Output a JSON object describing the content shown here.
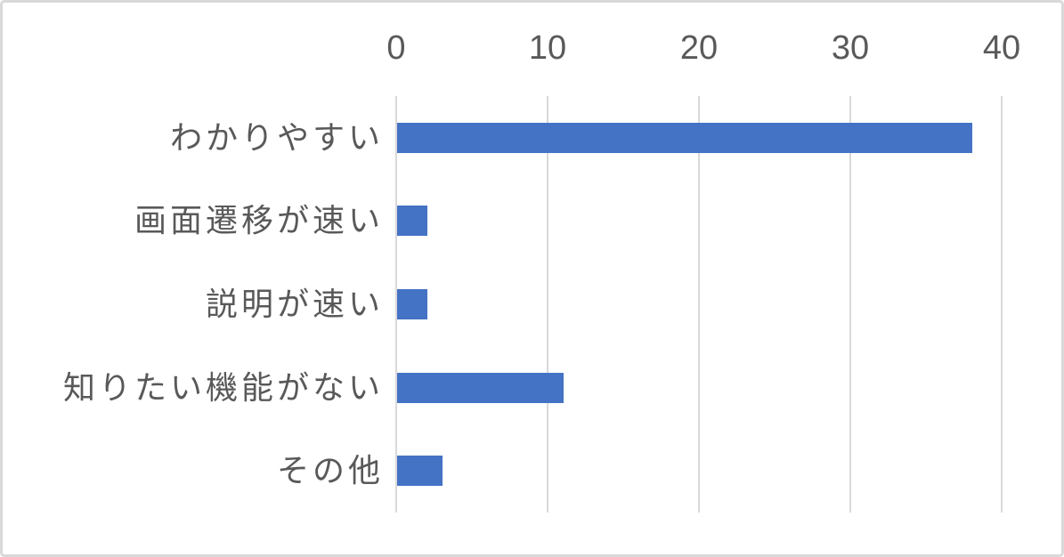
{
  "chart_data": {
    "type": "bar",
    "orientation": "horizontal",
    "title": "",
    "xlabel": "",
    "ylabel": "",
    "categories": [
      "わかりやすい",
      "画面遷移が速い",
      "説明が速い",
      "知りたい機能がない",
      "その他"
    ],
    "values": [
      38,
      2,
      2,
      11,
      3
    ],
    "xlim": [
      0,
      40
    ],
    "x_ticks": [
      0,
      10,
      20,
      30,
      40
    ],
    "x_tick_labels": [
      "0",
      "10",
      "20",
      "30",
      "40"
    ],
    "tick_position": "top",
    "grid": true,
    "legend": false,
    "colors": {
      "bar": "#4472C4",
      "gridline": "#D9D9D9",
      "axis_line": "#D9D9D9",
      "text": "#595959",
      "frame_border": "#D9D9D9",
      "background": "#FFFFFF"
    }
  }
}
